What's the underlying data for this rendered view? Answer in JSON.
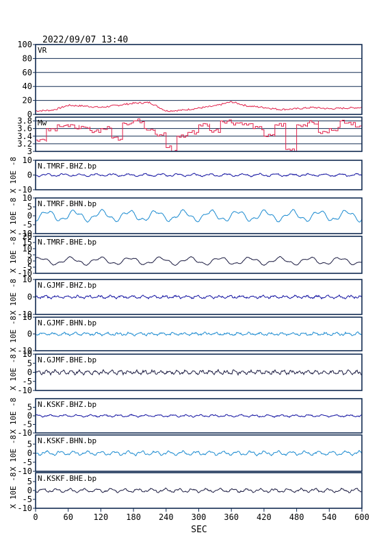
{
  "header": {
    "datetime": "2022/09/07  13:40"
  },
  "chart_data": [
    {
      "type": "line",
      "label": "VR",
      "ylim": [
        0,
        100
      ],
      "yticks": [
        0,
        20,
        40,
        60,
        80,
        100
      ],
      "grid": true,
      "color": "#e0204a",
      "style": "smooth",
      "x": [
        0,
        30,
        40,
        60,
        90,
        120,
        150,
        180,
        210,
        240,
        270,
        300,
        330,
        360,
        390,
        420,
        450,
        480,
        510,
        540,
        570,
        600
      ],
      "values": [
        5,
        6,
        8,
        13,
        12,
        10,
        13,
        16,
        17,
        5,
        6,
        9,
        12,
        18,
        12,
        10,
        7,
        8,
        10,
        8,
        9,
        10
      ]
    },
    {
      "type": "line",
      "label": "Mw",
      "ylim": [
        3.0,
        3.9
      ],
      "yticks": [
        3.0,
        3.2,
        3.4,
        3.6,
        3.8
      ],
      "grid": true,
      "color": "#e0204a",
      "style": "step",
      "x": [
        0,
        20,
        40,
        60,
        80,
        100,
        120,
        140,
        160,
        180,
        200,
        220,
        240,
        250,
        260,
        280,
        300,
        320,
        340,
        360,
        380,
        400,
        420,
        440,
        460,
        480,
        500,
        520,
        540,
        560,
        580,
        600
      ],
      "values": [
        3.3,
        3.6,
        3.7,
        3.65,
        3.6,
        3.55,
        3.6,
        3.35,
        3.75,
        3.8,
        3.6,
        3.45,
        3.1,
        3.0,
        3.4,
        3.5,
        3.7,
        3.55,
        3.8,
        3.75,
        3.7,
        3.6,
        3.4,
        3.7,
        3.05,
        3.7,
        3.75,
        3.5,
        3.6,
        3.8,
        3.7,
        3.8
      ]
    },
    {
      "type": "line",
      "label": "N.TMRF.BHZ.bp",
      "ylabel": "X 10E -8",
      "ylim": [
        -10,
        10
      ],
      "yticks": [
        -10,
        0,
        10
      ],
      "color": "#1010a0",
      "amplitude": 0.7,
      "period_sec": 30,
      "noise": 0.6
    },
    {
      "type": "line",
      "label": "N.TMRF.BHN.bp",
      "ylabel": "X 10E -8",
      "ylim": [
        -10,
        10
      ],
      "yticks": [
        -10,
        -5,
        0,
        5,
        10
      ],
      "color": "#1a8ad0",
      "amplitude": 2.5,
      "period_sec": 50,
      "noise": 0.4
    },
    {
      "type": "line",
      "label": "N.TMRF.BHE.bp",
      "ylabel": "X 10E -8",
      "ylim": [
        -10,
        20
      ],
      "yticks": [
        -10,
        -5,
        0,
        5,
        10,
        15,
        20
      ],
      "color": "#1a1a40",
      "amplitude": 2.5,
      "period_sec": 55,
      "noise": 0.4
    },
    {
      "type": "line",
      "label": "N.GJMF.BHZ.bp",
      "ylabel": "X 10E -8",
      "ylim": [
        -10,
        10
      ],
      "yticks": [
        -10,
        0,
        10
      ],
      "color": "#1010a0",
      "amplitude": 0.6,
      "period_sec": 20,
      "noise": 0.8
    },
    {
      "type": "line",
      "label": "N.GJMF.BHN.bp",
      "ylabel": "X 10E -8",
      "ylim": [
        -10,
        10
      ],
      "yticks": [
        -10,
        0,
        10
      ],
      "color": "#1a8ad0",
      "amplitude": 0.6,
      "period_sec": 20,
      "noise": 0.9
    },
    {
      "type": "line",
      "label": "N.GJMF.BHE.bp",
      "ylabel": "X 10E -8",
      "ylim": [
        -10,
        10
      ],
      "yticks": [
        -10,
        -5,
        0,
        5,
        10
      ],
      "color": "#1a1a40",
      "amplitude": 0.8,
      "period_sec": 15,
      "noise": 1.0
    },
    {
      "type": "line",
      "label": "N.KSKF.BHZ.bp",
      "ylabel": "X 10E -8",
      "ylim": [
        -10,
        10
      ],
      "yticks": [
        -10,
        -5,
        0,
        5
      ],
      "color": "#1010a0",
      "amplitude": 0.5,
      "period_sec": 25,
      "noise": 0.5
    },
    {
      "type": "line",
      "label": "N.KSKF.BHN.bp",
      "ylabel": "X 10E -8",
      "ylim": [
        -10,
        10
      ],
      "yticks": [
        -10,
        -5,
        0,
        5
      ],
      "color": "#1a8ad0",
      "amplitude": 0.9,
      "period_sec": 25,
      "noise": 0.6
    },
    {
      "type": "line",
      "label": "N.KSKF.BHE.bp",
      "ylabel": "X 10E -8",
      "ylim": [
        -10,
        10
      ],
      "yticks": [
        -10,
        -5,
        0,
        5
      ],
      "color": "#1a1a40",
      "amplitude": 0.8,
      "period_sec": 25,
      "noise": 0.6
    }
  ],
  "x_axis": {
    "label": "SEC",
    "range": [
      0,
      600
    ],
    "ticks": [
      0,
      60,
      120,
      180,
      240,
      300,
      360,
      420,
      480,
      540,
      600
    ]
  }
}
